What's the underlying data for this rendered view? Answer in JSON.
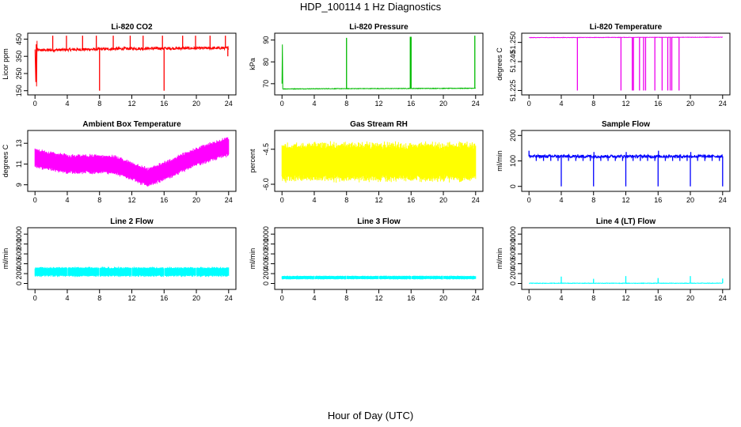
{
  "page": {
    "title": "HDP_100114  1 Hz Diagnostics",
    "xlabel": "Hour of Day (UTC)"
  },
  "chart_data": [
    {
      "type": "line",
      "title": "Li-820 CO2",
      "ylabel": "Licor ppm",
      "color": "#ff0000",
      "xlim": [
        0,
        24
      ],
      "ylim": [
        140,
        470
      ],
      "xticks": [
        0,
        4,
        8,
        12,
        16,
        20,
        24
      ],
      "yticks": [
        150,
        250,
        350,
        450
      ],
      "series": [
        {
          "baseline": [
            [
              0,
              385
            ],
            [
              12,
              395
            ],
            [
              24,
              398
            ]
          ],
          "noise": 8,
          "segments": [
            [
              0,
              390
            ],
            [
              0.1,
              200
            ],
            [
              0.15,
              420
            ],
            [
              0.2,
              175
            ],
            [
              0.25,
              440
            ]
          ],
          "spikes": [
            [
              2.2,
              470
            ],
            [
              3.9,
              470
            ],
            [
              5.9,
              470
            ],
            [
              7.6,
              470
            ],
            [
              8,
              150
            ],
            [
              9.7,
              470
            ],
            [
              11.8,
              470
            ],
            [
              13.4,
              470
            ],
            [
              15.8,
              470
            ],
            [
              16,
              150
            ],
            [
              18.3,
              470
            ],
            [
              19.9,
              470
            ],
            [
              21.7,
              470
            ],
            [
              23.6,
              470
            ],
            [
              23.9,
              350
            ]
          ]
        }
      ]
    },
    {
      "type": "line",
      "title": "Li-820 Pressure",
      "ylabel": "kPa",
      "color": "#00bb00",
      "xlim": [
        0,
        24
      ],
      "ylim": [
        66,
        92
      ],
      "xticks": [
        0,
        4,
        8,
        12,
        16,
        20,
        24
      ],
      "yticks": [
        70,
        80,
        90
      ],
      "series": [
        {
          "baseline": [
            [
              0,
              67.6
            ],
            [
              6,
              67.7
            ],
            [
              24,
              67.9
            ]
          ],
          "noise": 0.12,
          "segments": [
            [
              0,
              70
            ],
            [
              0.05,
              88
            ],
            [
              0.1,
              67.5
            ]
          ],
          "spikes": [
            [
              8,
              91
            ],
            [
              15.9,
              91.5
            ],
            [
              16,
              91.5
            ],
            [
              23.9,
              92
            ]
          ]
        }
      ]
    },
    {
      "type": "line",
      "title": "Li-820 Temperature",
      "ylabel": "degrees C",
      "color": "#ee00ee",
      "xlim": [
        0,
        24
      ],
      "ylim": [
        51.224,
        51.2535
      ],
      "xticks": [
        0,
        4,
        8,
        12,
        16,
        20,
        24
      ],
      "yticks": [
        51.225,
        51.24,
        51.25
      ],
      "ytick_labels": [
        "51.225",
        "51.240",
        "51.250"
      ],
      "series": [
        {
          "baseline": [
            [
              0,
              51.2525
            ],
            [
              24,
              51.2527
            ]
          ],
          "noise": 0.0001,
          "segments": [],
          "spikes": [
            [
              6,
              51.225
            ],
            [
              11.4,
              51.225
            ],
            [
              12.8,
              51.225
            ],
            [
              12.95,
              51.225
            ],
            [
              13.7,
              51.225
            ],
            [
              14.2,
              51.225
            ],
            [
              14.45,
              51.225
            ],
            [
              15.6,
              51.225
            ],
            [
              16.5,
              51.225
            ],
            [
              17.2,
              51.225
            ],
            [
              17.5,
              51.225
            ],
            [
              17.7,
              51.225
            ],
            [
              18.6,
              51.225
            ]
          ]
        }
      ]
    },
    {
      "type": "area",
      "title": "Ambient Box Temperature",
      "ylabel": "degrees C",
      "color": "#ff00ff",
      "xlim": [
        0,
        24
      ],
      "ylim": [
        8.6,
        14
      ],
      "xticks": [
        0,
        4,
        8,
        12,
        16,
        20,
        24
      ],
      "yticks": [
        9,
        11,
        13
      ],
      "series": [
        {
          "center": [
            [
              0,
              11.6
            ],
            [
              1,
              11.4
            ],
            [
              4,
              11.0
            ],
            [
              8,
              11.0
            ],
            [
              10,
              10.9
            ],
            [
              12,
              10.3
            ],
            [
              14,
              9.7
            ],
            [
              16,
              10.3
            ],
            [
              20,
              11.7
            ],
            [
              24,
              12.7
            ]
          ],
          "halfwidth": 1.0
        }
      ]
    },
    {
      "type": "area",
      "title": "Gas Stream RH",
      "ylabel": "percent",
      "color": "#ffff00",
      "xlim": [
        0,
        24
      ],
      "ylim": [
        -6.2,
        -3.8
      ],
      "xticks": [
        0,
        4,
        8,
        12,
        16,
        20,
        24
      ],
      "yticks": [
        -6.0,
        -4.5
      ],
      "ytick_labels": [
        "-6.0",
        "-4.5"
      ],
      "series": [
        {
          "center": [
            [
              0,
              -5.05
            ],
            [
              24,
              -5.05
            ]
          ],
          "halfwidth": 0.9
        }
      ]
    },
    {
      "type": "line",
      "title": "Sample Flow",
      "ylabel": "ml/min",
      "color": "#0000ff",
      "xlim": [
        0,
        24
      ],
      "ylim": [
        -10,
        210
      ],
      "xticks": [
        0,
        4,
        8,
        12,
        16,
        20,
        24
      ],
      "yticks": [
        0,
        100,
        200
      ],
      "series": [
        {
          "baseline": [
            [
              0,
              118
            ],
            [
              24,
              118
            ]
          ],
          "noise": 6,
          "segments": [],
          "spikes": [
            [
              0,
              140
            ],
            [
              0.9,
              100
            ],
            [
              1.8,
              100
            ],
            [
              2.7,
              100
            ],
            [
              3.6,
              100
            ],
            [
              4,
              0
            ],
            [
              4.9,
              100
            ],
            [
              5.8,
              100
            ],
            [
              6.7,
              100
            ],
            [
              7.6,
              100
            ],
            [
              8,
              0
            ],
            [
              8.05,
              135
            ],
            [
              8.9,
              100
            ],
            [
              9.8,
              100
            ],
            [
              10.7,
              100
            ],
            [
              11.6,
              100
            ],
            [
              12,
              0
            ],
            [
              12.05,
              135
            ],
            [
              12.9,
              100
            ],
            [
              13.8,
              100
            ],
            [
              14.7,
              100
            ],
            [
              15.6,
              100
            ],
            [
              16,
              0
            ],
            [
              16.05,
              140
            ],
            [
              16.9,
              100
            ],
            [
              17.8,
              100
            ],
            [
              18.7,
              100
            ],
            [
              19.6,
              100
            ],
            [
              20,
              0
            ],
            [
              20.05,
              135
            ],
            [
              20.9,
              100
            ],
            [
              21.8,
              100
            ],
            [
              22.7,
              100
            ],
            [
              23.6,
              100
            ],
            [
              24,
              0
            ]
          ]
        }
      ]
    },
    {
      "type": "area",
      "title": "Line 2 Flow",
      "ylabel": "ml/min",
      "color": "#00ffff",
      "xlim": [
        0,
        24
      ],
      "ylim": [
        -70,
        1080
      ],
      "xticks": [
        0,
        4,
        8,
        12,
        16,
        20,
        24
      ],
      "yticks": [
        0,
        200,
        400,
        600,
        800,
        1000
      ],
      "series": [
        {
          "center": [
            [
              0,
              235
            ],
            [
              24,
              235
            ]
          ],
          "halfwidth": 105,
          "gaps": [
            4,
            8,
            12,
            16,
            20
          ]
        }
      ]
    },
    {
      "type": "area",
      "title": "Line 3 Flow",
      "ylabel": "ml/min",
      "color": "#00ffff",
      "xlim": [
        0,
        24
      ],
      "ylim": [
        -70,
        1080
      ],
      "xticks": [
        0,
        4,
        8,
        12,
        16,
        20,
        24
      ],
      "yticks": [
        0,
        200,
        400,
        600,
        800,
        1000
      ],
      "series": [
        {
          "center": [
            [
              0,
              120
            ],
            [
              24,
              120
            ]
          ],
          "halfwidth": 40,
          "gaps": [
            4,
            8,
            12,
            16,
            20
          ]
        }
      ]
    },
    {
      "type": "line",
      "title": "Line 4 (LT) Flow",
      "ylabel": "ml/min",
      "color": "#00ffff",
      "xlim": [
        0,
        24
      ],
      "ylim": [
        -70,
        1080
      ],
      "xticks": [
        0,
        4,
        8,
        12,
        16,
        20,
        24
      ],
      "yticks": [
        0,
        200,
        400,
        600,
        800,
        1000
      ],
      "series": [
        {
          "baseline": [
            [
              0,
              5
            ],
            [
              24,
              5
            ]
          ],
          "noise": 5,
          "segments": [],
          "spikes": [
            [
              4,
              140
            ],
            [
              8,
              95
            ],
            [
              12,
              150
            ],
            [
              16,
              110
            ],
            [
              20,
              150
            ],
            [
              24,
              100
            ]
          ]
        }
      ]
    }
  ]
}
